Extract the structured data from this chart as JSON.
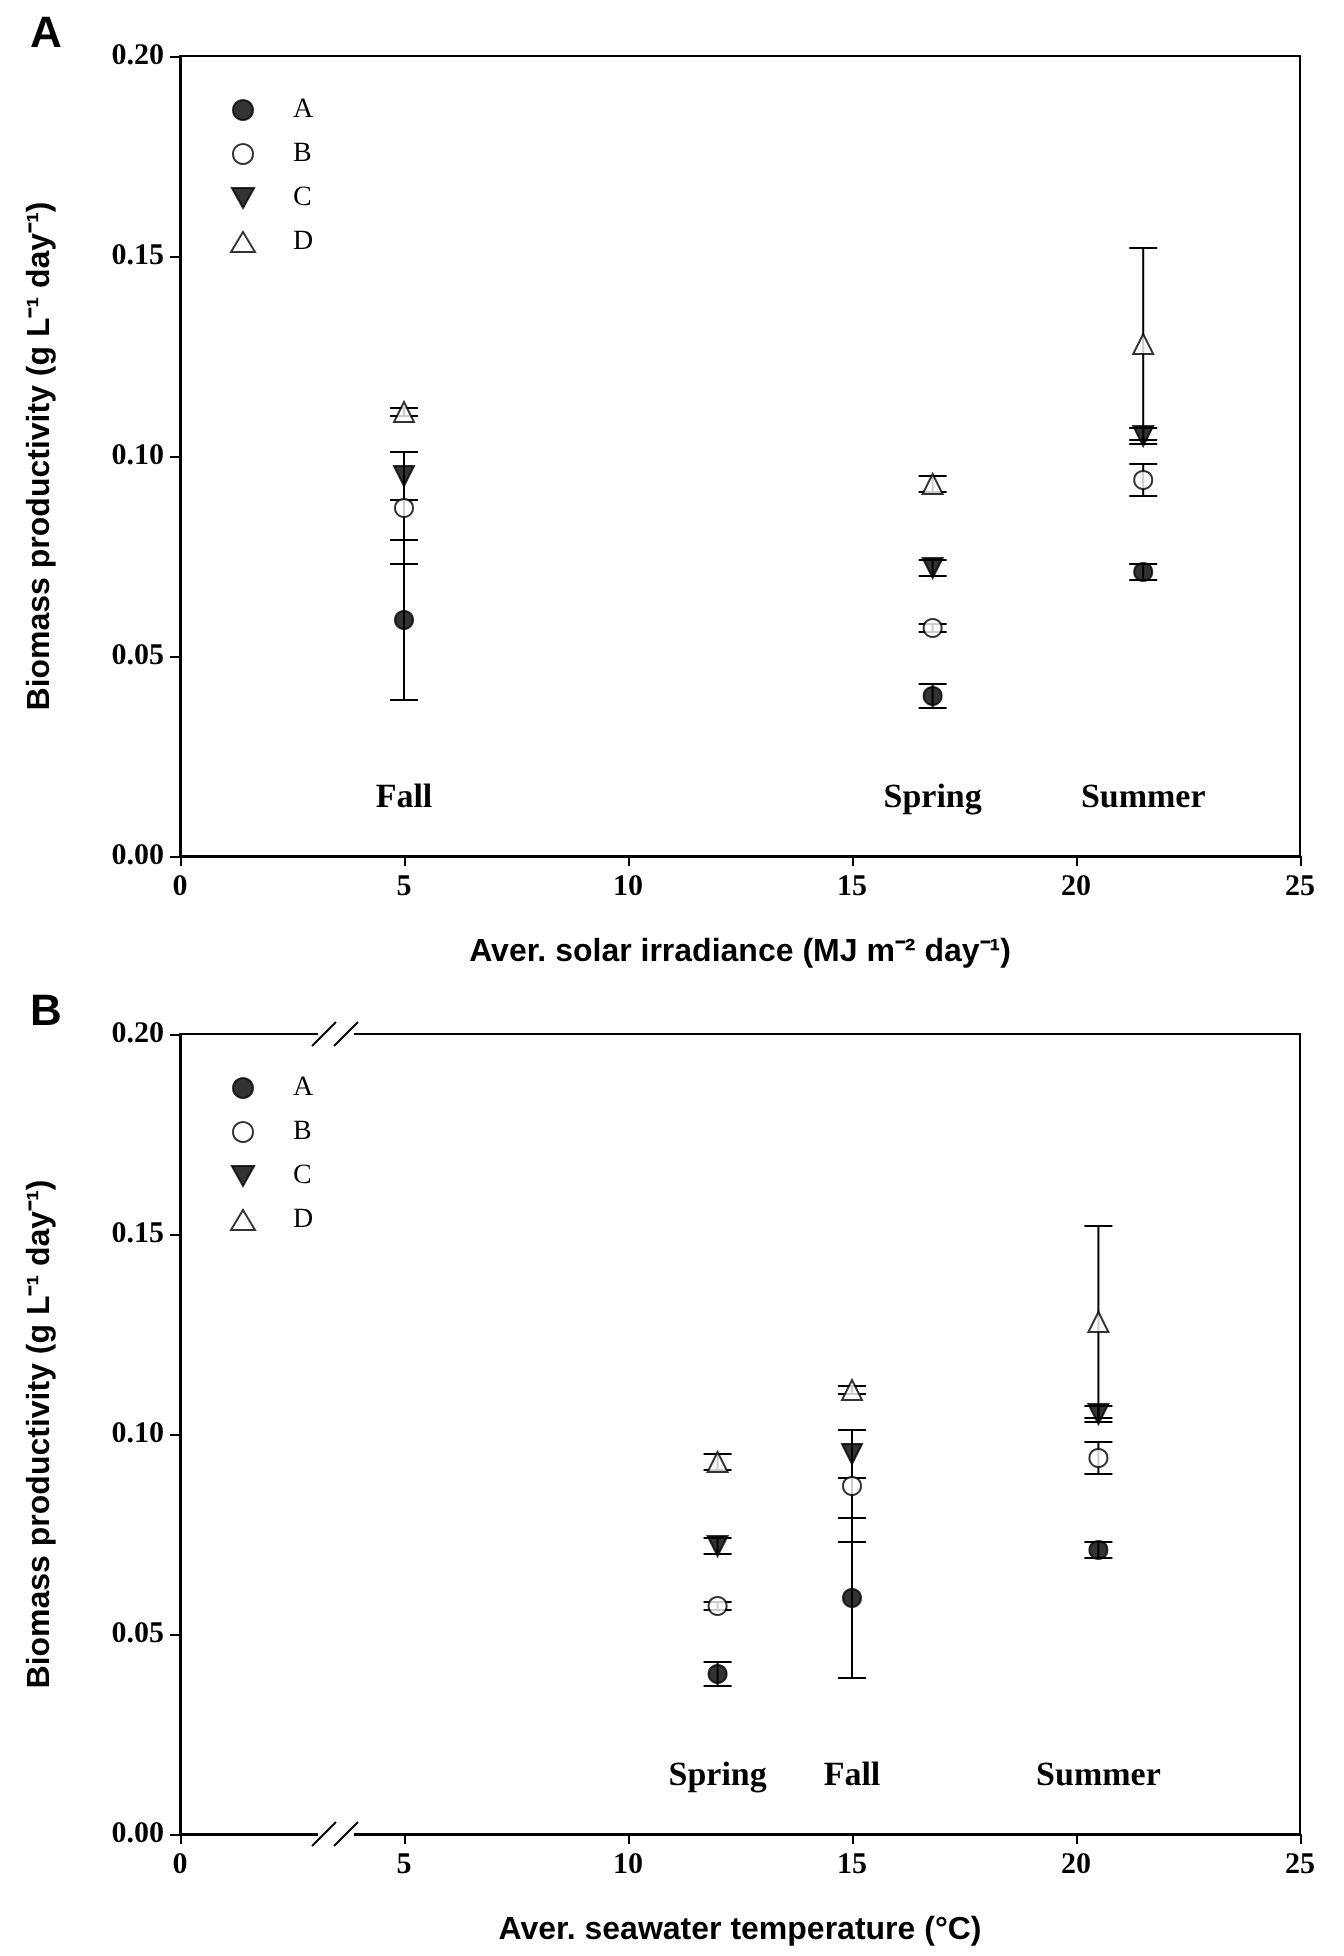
{
  "chart_data": [
    {
      "type": "scatter",
      "title": "A",
      "xlabel": "Aver. solar irradiance (MJ m⁻² day⁻¹)",
      "ylabel": "Biomass productivity (g L⁻¹ day⁻¹)",
      "x": [
        5,
        16.8,
        21.5
      ],
      "series": [
        {
          "name": "A",
          "color": "#000000",
          "marker": "circle",
          "values": [
            0.059,
            0.04,
            0.071
          ],
          "errors": [
            0.02,
            0.003,
            0.002
          ]
        },
        {
          "name": "B",
          "color": "#ffffff",
          "marker": "circle",
          "values": [
            0.087,
            0.057,
            0.094
          ],
          "errors": [
            0.014,
            0.001,
            0.004
          ]
        },
        {
          "name": "C",
          "color": "#000000",
          "marker": "triangle-down",
          "values": [
            0.095,
            0.072,
            0.105
          ],
          "errors": [
            0.006,
            0.002,
            0.002
          ]
        },
        {
          "name": "D",
          "color": "#ffffff",
          "marker": "triangle",
          "values": [
            0.111,
            0.093,
            0.128
          ],
          "errors": [
            0.001,
            0.002,
            0.024
          ]
        }
      ],
      "annotations": [
        "Fall",
        "Spring",
        "Summer"
      ],
      "xlim": [
        0,
        25
      ],
      "xticks": [
        0,
        5,
        10,
        15,
        20,
        25
      ],
      "ylim": [
        0,
        0.2
      ],
      "yticks": [
        {
          "value": 0,
          "label": "0.00"
        },
        {
          "value": 0.05,
          "label": "0.05"
        },
        {
          "value": 0.1,
          "label": "0.10"
        },
        {
          "value": 0.15,
          "label": "0.15"
        },
        {
          "value": 0.2,
          "label": "0.20"
        }
      ],
      "grid": false,
      "legend": "top left"
    },
    {
      "type": "scatter",
      "title": "B",
      "xlabel": "Aver. seawater temperature (°C)",
      "ylabel": "Biomass productivity (g L⁻¹ day⁻¹)",
      "x": [
        12,
        15,
        20.5
      ],
      "series": [
        {
          "name": "A",
          "color": "#000000",
          "marker": "circle",
          "values": [
            0.04,
            0.059,
            0.071
          ],
          "errors": [
            0.003,
            0.02,
            0.002
          ]
        },
        {
          "name": "B",
          "color": "#ffffff",
          "marker": "circle",
          "values": [
            0.057,
            0.087,
            0.094
          ],
          "errors": [
            0.001,
            0.014,
            0.004
          ]
        },
        {
          "name": "C",
          "color": "#000000",
          "marker": "triangle-down",
          "values": [
            0.072,
            0.095,
            0.105
          ],
          "errors": [
            0.002,
            0.006,
            0.002
          ]
        },
        {
          "name": "D",
          "color": "#ffffff",
          "marker": "triangle",
          "values": [
            0.093,
            0.111,
            0.128
          ],
          "errors": [
            0.002,
            0.001,
            0.024
          ]
        }
      ],
      "annotations": [
        "Spring",
        "Fall",
        "Summer"
      ],
      "xlim": [
        0,
        25
      ],
      "xticks": [
        0,
        5,
        10,
        15,
        20,
        25
      ],
      "ylim": [
        0,
        0.2
      ],
      "yticks": [
        {
          "value": 0,
          "label": "0.00"
        },
        {
          "value": 0.05,
          "label": "0.05"
        },
        {
          "value": 0.1,
          "label": "0.10"
        },
        {
          "value": 0.15,
          "label": "0.15"
        },
        {
          "value": 0.2,
          "label": "0.20"
        }
      ],
      "grid": false,
      "legend": "top left"
    }
  ]
}
